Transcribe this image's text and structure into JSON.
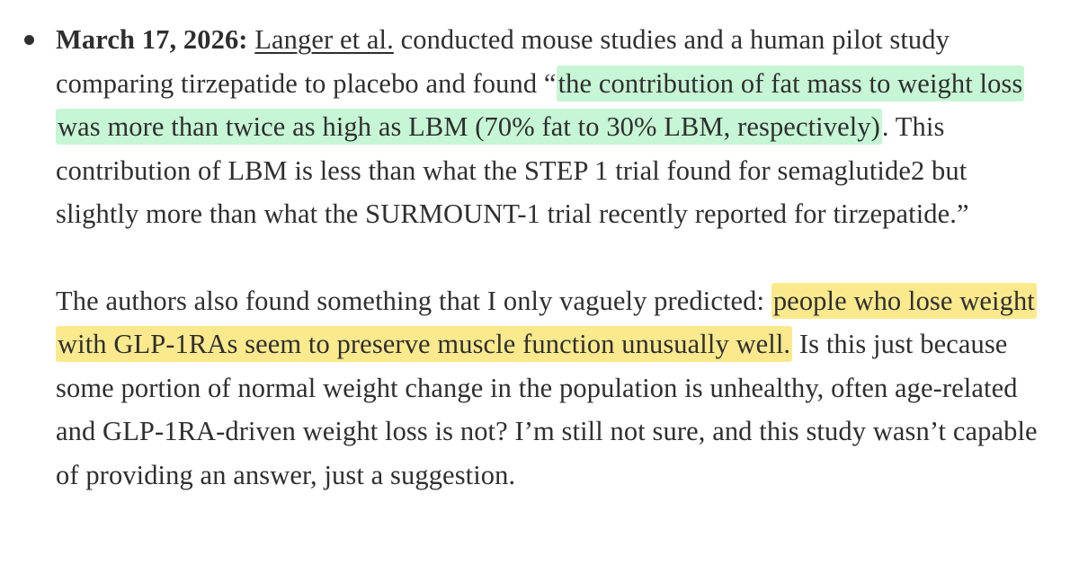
{
  "entry": {
    "date": "March 17, 2026:",
    "link_text": "Langer et al.",
    "p1_lead": " conducted mouse studies and a human pilot study comparing tirzepatide to placebo and found “",
    "p1_highlight": "the contribution of fat mass to weight loss was more than twice as high as LBM (70% fat to 30% LBM, respectively)",
    "p1_tail": ". This contribution of LBM is less than what the STEP 1 trial found for semaglutide2 but slightly more than what the SURMOUNT-1 trial recently reported for tirzepatide.”",
    "p2_lead": "The authors also found something that I only vaguely predicted: ",
    "p2_highlight": "people who lose weight with GLP-1RAs seem to preserve muscle function unusually well.",
    "p2_tail": " Is this just because some portion of normal weight change in the population is unhealthy, often age-related and GLP-1RA-driven weight loss is not? I’m still not sure, and this study wasn’t capable of providing an answer, just a suggestion."
  },
  "colors": {
    "text": "#2f2f2f",
    "highlight_green": "#c6f6d5",
    "highlight_yellow": "#fbe98d"
  }
}
